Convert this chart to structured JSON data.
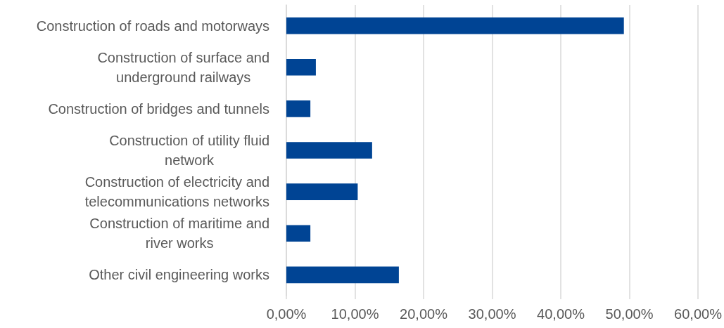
{
  "chart_data": {
    "type": "bar",
    "orientation": "horizontal",
    "categories": [
      "Construction of roads and motorways",
      "Construction of surface and\nunderground railways",
      "Construction of bridges and tunnels",
      "Construction of utility fluid\nnetwork",
      "Construction of electricity and\ntelecommunications networks",
      "Construction of maritime and\nriver works",
      "Other civil engineering works"
    ],
    "values": [
      49.2,
      4.3,
      3.5,
      12.5,
      10.4,
      3.5,
      16.4
    ],
    "color": "#004494",
    "xlim": [
      0,
      60
    ],
    "xticks": [
      {
        "value": 0,
        "label": "0,00%"
      },
      {
        "value": 10,
        "label": "10,00%"
      },
      {
        "value": 20,
        "label": "20,00%"
      },
      {
        "value": 30,
        "label": "30,00%"
      },
      {
        "value": 40,
        "label": "40,00%"
      },
      {
        "value": 50,
        "label": "50,00%"
      },
      {
        "value": 60,
        "label": "60,00%"
      }
    ],
    "grid": "x"
  }
}
